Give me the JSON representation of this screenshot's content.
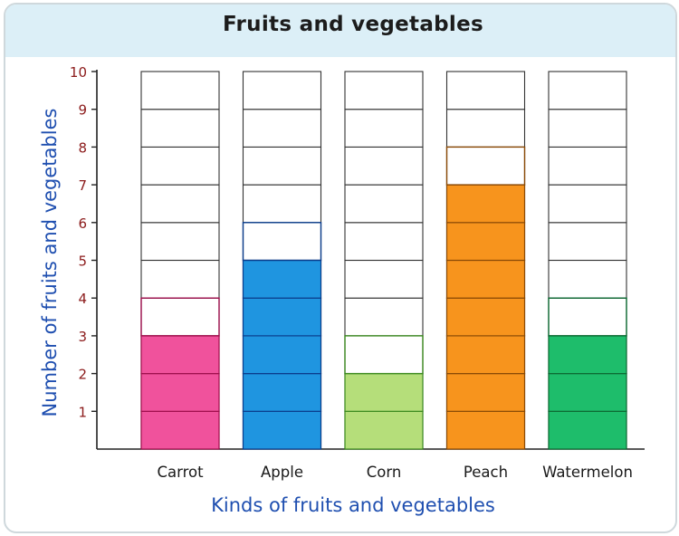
{
  "chart_data": {
    "type": "bar",
    "title": "Fruits and vegetables",
    "xlabel": "Kinds of fruits and vegetables",
    "ylabel": "Number of fruits and vegetables",
    "categories": [
      "Carrot",
      "Apple",
      "Corn",
      "Peach",
      "Watermelon"
    ],
    "values": [
      3,
      5,
      2,
      7,
      3
    ],
    "colors": [
      "#f0529c",
      "#1f95e0",
      "#b5de7a",
      "#f7941d",
      "#1ebd6b"
    ],
    "outlines": [
      "#a0104e",
      "#0b3d8c",
      "#3c8a20",
      "#8a4a06",
      "#0d6b34"
    ],
    "ylim": [
      0,
      10
    ],
    "yticks": [
      1,
      2,
      3,
      4,
      5,
      6,
      7,
      8,
      9,
      10
    ],
    "tick_color": "#8b1a1a",
    "grid": true
  }
}
